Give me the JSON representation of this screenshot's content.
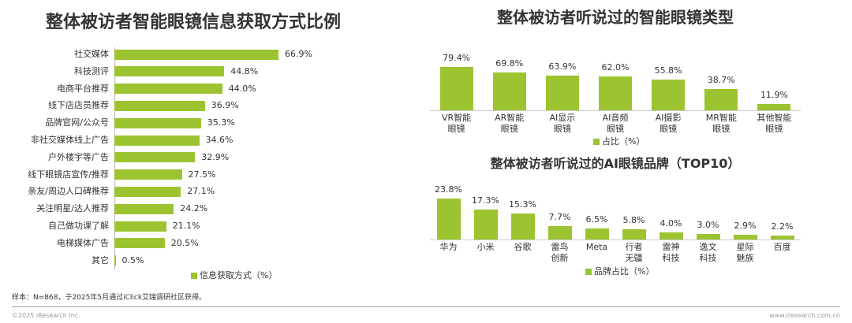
{
  "chart_data": [
    {
      "type": "barh",
      "title": "整体被访者智能眼镜信息获取方式比例",
      "categories": [
        "社交媒体",
        "科技测评",
        "电商平台推荐",
        "线下店店员推荐",
        "品牌官网/公众号",
        "非社交媒体线上广告",
        "户外楼宇等广告",
        "线下眼镜店宣传/推荐",
        "亲友/周边人口碑推荐",
        "关注明星/达人推荐",
        "自己做功课了解",
        "电梯媒体广告",
        "其它"
      ],
      "series": [
        {
          "name": "信息获取方式（%）",
          "color": "#9bc430",
          "values": [
            66.9,
            44.8,
            44.0,
            36.9,
            35.3,
            34.6,
            32.9,
            27.5,
            27.1,
            24.2,
            21.1,
            20.5,
            0.5
          ],
          "value_labels": [
            "66.9%",
            "44.8%",
            "44.0%",
            "36.9%",
            "35.3%",
            "34.6%",
            "32.9%",
            "27.5%",
            "27.1%",
            "24.2%",
            "21.1%",
            "20.5%",
            "0.5%"
          ]
        }
      ]
    },
    {
      "type": "bar",
      "title": "整体被访者听说过的智能眼镜类型",
      "categories": [
        "VR智能\n眼镜",
        "AR智能\n眼镜",
        "AI显示\n眼镜",
        "AI音频\n眼镜",
        "AI摄影\n眼镜",
        "MR智能\n眼镜",
        "其他智能\n眼镜"
      ],
      "series": [
        {
          "name": "占比（%）",
          "color": "#9bc430",
          "values": [
            79.4,
            69.8,
            63.9,
            62.0,
            55.8,
            38.7,
            11.9
          ],
          "value_labels": [
            "79.4%",
            "69.8%",
            "63.9%",
            "62.0%",
            "55.8%",
            "38.7%",
            "11.9%"
          ]
        }
      ]
    },
    {
      "type": "bar",
      "title": "整体被访者听说过的AI眼镜品牌（TOP10）",
      "categories": [
        "华为",
        "小米",
        "谷歌",
        "雷鸟\n创新",
        "Meta",
        "行者\n无疆",
        "雷神\n科技",
        "逸文\n科技",
        "星际\n魅族",
        "百度"
      ],
      "series": [
        {
          "name": "品牌占比（%）",
          "color": "#9bc430",
          "values": [
            23.8,
            17.3,
            15.3,
            7.7,
            6.5,
            5.8,
            4.0,
            3.0,
            2.9,
            2.2
          ],
          "value_labels": [
            "23.8%",
            "17.3%",
            "15.3%",
            "7.7%",
            "6.5%",
            "5.8%",
            "4.0%",
            "3.0%",
            "2.9%",
            "2.2%"
          ]
        }
      ]
    }
  ],
  "footer": {
    "note": "样本：N=868，于2025年5月通过iClick艾瑞调研社区获得。",
    "copyright": "©2025 iResearch Inc.",
    "website": "www.iresearch.com.cn"
  }
}
